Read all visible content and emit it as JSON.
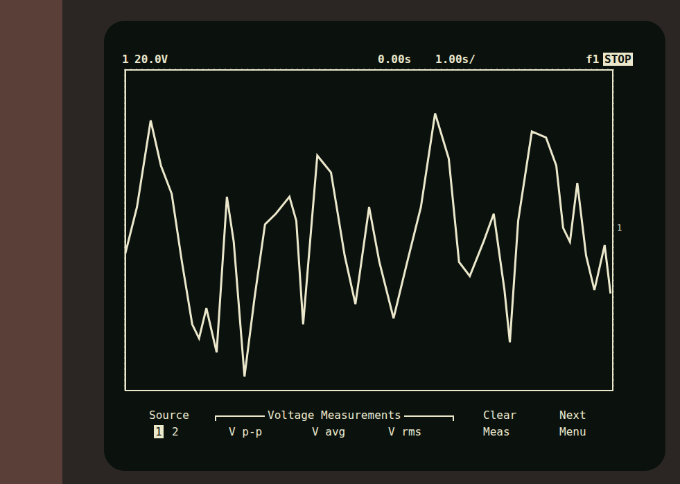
{
  "chart_data": {
    "type": "line",
    "x": [
      -5.0,
      -4.75,
      -4.47,
      -4.26,
      -4.04,
      -3.83,
      -3.62,
      -3.48,
      -3.33,
      -3.12,
      -2.91,
      -2.77,
      -2.55,
      -2.34,
      -2.13,
      -1.91,
      -1.63,
      -1.49,
      -1.35,
      -1.06,
      -0.78,
      -0.5,
      -0.28,
      0.0,
      0.21,
      0.5,
      0.78,
      1.06,
      1.35,
      1.63,
      1.84,
      2.06,
      2.34,
      2.55,
      2.77,
      2.88,
      3.05,
      3.33,
      3.62,
      3.83,
      3.97,
      4.11,
      4.26,
      4.44,
      4.61,
      4.82,
      4.94
    ],
    "values": [
      -12.8,
      11.4,
      54.5,
      32.0,
      18.0,
      -16.0,
      -47.0,
      -54.0,
      -39.0,
      -61.0,
      16.5,
      -6.0,
      -73.0,
      -33.0,
      2.8,
      8.0,
      16.5,
      4.5,
      -47.0,
      37.0,
      28.6,
      -12.8,
      -37.0,
      11.4,
      -16.0,
      -44.0,
      -16.0,
      11.4,
      58.0,
      35.5,
      -16.0,
      -23.0,
      -6.0,
      8.0,
      -30.0,
      -56.0,
      4.5,
      49.0,
      46.0,
      32.0,
      1.0,
      -6.0,
      23.4,
      -12.8,
      -30.0,
      -7.6,
      -31.7
    ],
    "color": "#ece8cc",
    "xlim": [
      -5,
      5
    ],
    "xticks": [
      -5,
      -4,
      -3,
      -2,
      -1,
      0,
      1,
      2,
      3,
      4,
      5
    ],
    "ylim": [
      -80,
      80
    ],
    "yticks": [
      -80,
      -60,
      -40,
      -20,
      0,
      20,
      40,
      60,
      80
    ],
    "grid": true,
    "tick_labels": false,
    "line_style": "solid",
    "marker": "none",
    "annotations": {
      "channel": "1",
      "volts_per_div": "20.0V",
      "time_offset": "0.00s",
      "time_per_div": "1.00s/",
      "function": "f1",
      "run_state": "STOP",
      "ground_marker": "1",
      "menu": [
        {
          "label": "Source",
          "sub": "1 2"
        },
        {
          "label": "Voltage Measurements",
          "items": [
            "V p-p",
            "V avg",
            "V rms"
          ]
        },
        {
          "label": "Clear",
          "sub": "Meas"
        },
        {
          "label": "Next",
          "sub": "Menu"
        }
      ]
    }
  }
}
